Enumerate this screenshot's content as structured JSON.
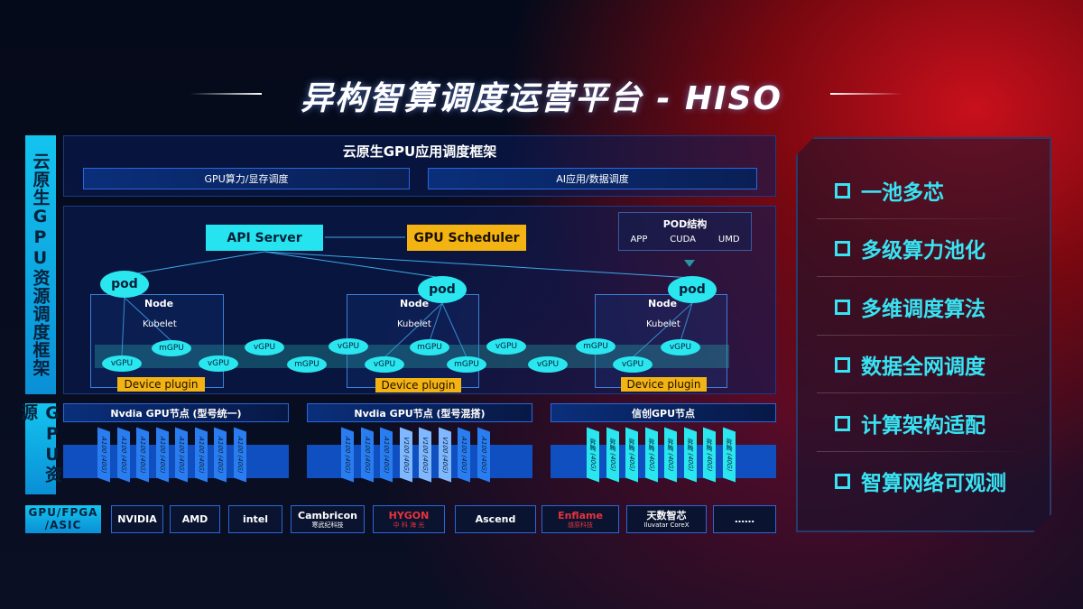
{
  "title": "异构智算调度运营平台 - HISO",
  "left_labels": {
    "top": "云原生GPU资源调度框架",
    "bottom": "GPU资源"
  },
  "framework": {
    "title": "云原生GPU应用调度框架",
    "boxes": [
      "GPU算力/显存调度",
      "AI应用/数据调度"
    ]
  },
  "scheduling": {
    "api_server": "API Server",
    "gpu_scheduler": "GPU Scheduler",
    "pod_structure": {
      "title": "POD结构",
      "items": [
        "APP",
        "CUDA",
        "UMD"
      ]
    },
    "nodes": [
      {
        "label": "Node",
        "kubelet": "Kubelet",
        "pod": "pod",
        "device_plugin": "Device plugin"
      },
      {
        "label": "Node",
        "kubelet": "Kubelet",
        "pod": "pod",
        "device_plugin": "Device plugin"
      },
      {
        "label": "Node",
        "kubelet": "Kubelet",
        "pod": "pod",
        "device_plugin": "Device plugin"
      }
    ],
    "gpu_instances": [
      "vGPU",
      "mGPU",
      "vGPU",
      "vGPU",
      "mGPU",
      "vGPU",
      "vGPU",
      "mGPU",
      "mGPU",
      "vGPU",
      "vGPU",
      "mGPU",
      "vGPU",
      "vGPU"
    ]
  },
  "gpu_groups": [
    {
      "title": "Nvdia GPU节点 (型号统一)",
      "cards": [
        "A100 (40G)",
        "A100 (40G)",
        "A100 (40G)",
        "A100 (40G)",
        "A100 (40G)",
        "A100 (40G)",
        "A100 (40G)",
        "A100 (40G)"
      ]
    },
    {
      "title": "Nvdia GPU节点 (型号混搭)",
      "cards": [
        "A100 (40G)",
        "A100 (40G)",
        "A100 (40G)",
        "V100 (40G)",
        "V100 (40G)",
        "V100 (40G)",
        "A100 (40G)",
        "A100 (40G)"
      ]
    },
    {
      "title": "信创GPU节点",
      "cards": [
        "昇腾 (40G)",
        "昇腾 (40G)",
        "昇腾 (40G)",
        "昇腾 (40G)",
        "昇腾 (40G)",
        "昇腾 (40G)",
        "昇腾 (40G)",
        "昇腾 (40G)"
      ]
    }
  ],
  "vendors": {
    "label": "GPU/FPGA /ASIC",
    "items": [
      {
        "name": "NVIDIA",
        "sub": ""
      },
      {
        "name": "AMD",
        "sub": ""
      },
      {
        "name": "intel",
        "sub": ""
      },
      {
        "name": "Cambricon",
        "sub": "寒武纪科技"
      },
      {
        "name": "HYGON",
        "sub": "中 科 海 光"
      },
      {
        "name": "Ascend",
        "sub": ""
      },
      {
        "name": "Enflame",
        "sub": "燧原科技"
      },
      {
        "name": "天数智芯",
        "sub": "Iluvatar CoreX"
      },
      {
        "name": "……",
        "sub": ""
      }
    ]
  },
  "features": [
    "一池多芯",
    "多级算力池化",
    "多维调度算法",
    "数据全网调度",
    "计算架构适配",
    "智算网络可观测"
  ],
  "colors": {
    "cyan": "#25e3ef",
    "gold": "#f3b312",
    "blue": "#0f4fc0",
    "red": "#c8101c"
  }
}
